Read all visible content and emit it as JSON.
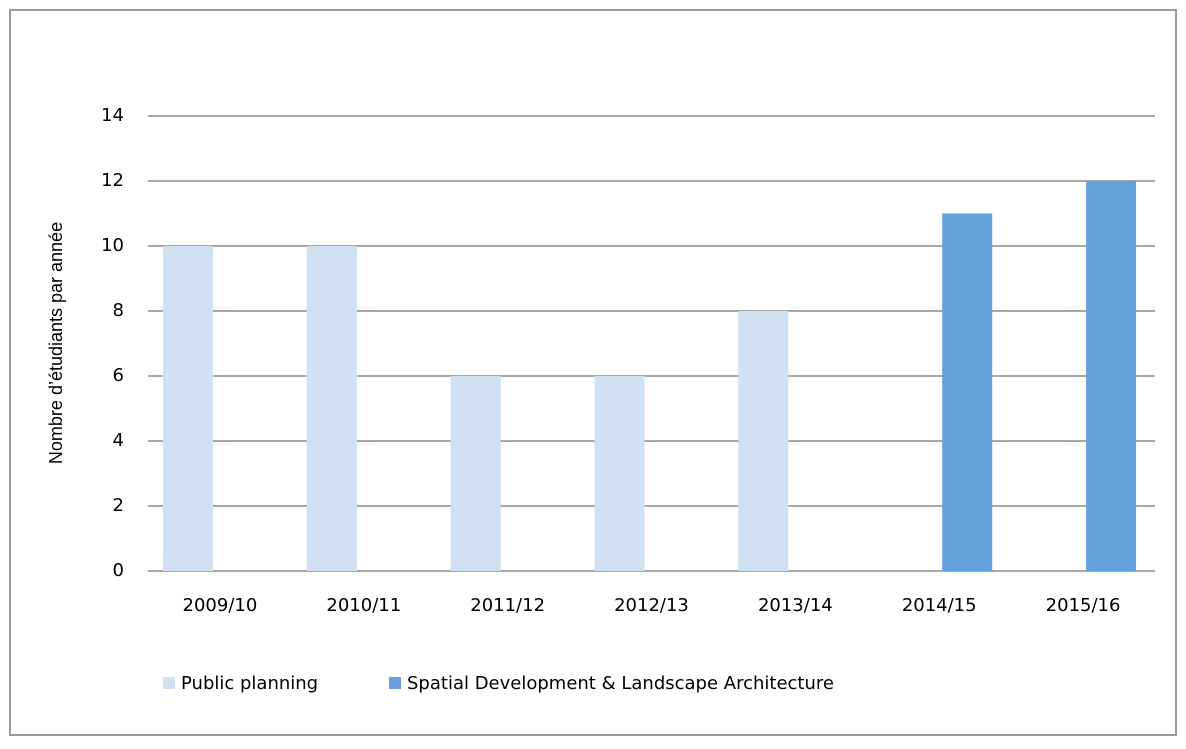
{
  "chart_data": {
    "type": "bar",
    "y_label": "Nombre d’étudiants par année",
    "categories": [
      "2009/10",
      "2010/11",
      "2011/12",
      "2012/13",
      "2013/14",
      "2014/15",
      "2015/16"
    ],
    "series": [
      {
        "name": "Public planning",
        "color": "#cfe0f3",
        "values": [
          10,
          10,
          6,
          6,
          8,
          null,
          null
        ]
      },
      {
        "name": "Spatial Development & Landscape Architecture",
        "color": "#64a1dc",
        "values": [
          null,
          null,
          null,
          null,
          null,
          11,
          12
        ]
      }
    ],
    "ylim": [
      0,
      14
    ],
    "yticks": [
      0,
      2,
      4,
      6,
      8,
      10,
      12,
      14
    ],
    "grid": true
  }
}
